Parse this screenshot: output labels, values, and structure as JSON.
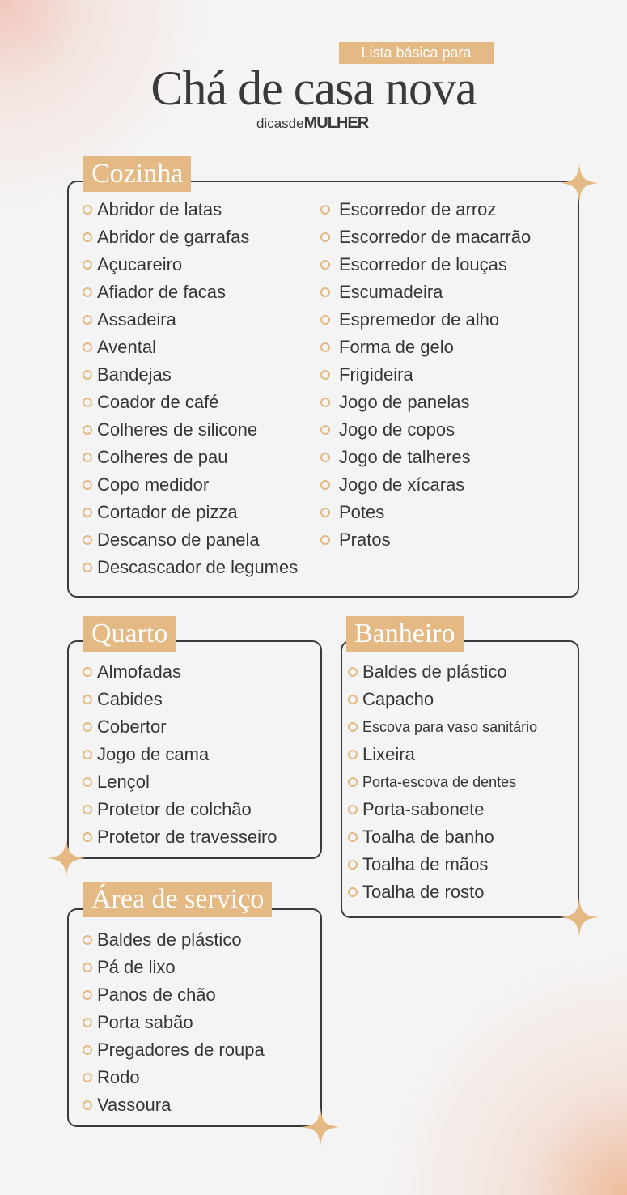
{
  "header": {
    "tag": "Lista básica para",
    "title": "Chá de casa nova",
    "logo_light": "dicasde",
    "logo_bold": "MULHER"
  },
  "colors": {
    "accent": "#e4b984",
    "text": "#363636",
    "background": "#f4f4f4"
  },
  "sections": {
    "cozinha": {
      "title": "Cozinha",
      "col1": [
        "Abridor de latas",
        "Abridor de garrafas",
        "Açucareiro",
        "Afiador de facas",
        "Assadeira",
        "Avental",
        "Bandejas",
        "Coador de café",
        "Colheres de silicone",
        "Colheres de pau",
        "Copo medidor",
        "Cortador de pizza",
        "Descanso de panela",
        "Descascador de legumes"
      ],
      "col2": [
        "Escorredor de arroz",
        "Escorredor de macarrão",
        "Escorredor de louças",
        "Escumadeira",
        "Espremedor de alho",
        "Forma de gelo",
        "Frigideira",
        "Jogo de panelas",
        "Jogo de copos",
        "Jogo de talheres",
        "Jogo de xícaras",
        "Potes",
        "Pratos"
      ]
    },
    "quarto": {
      "title": "Quarto",
      "items": [
        "Almofadas",
        "Cabides",
        "Cobertor",
        "Jogo de cama",
        "Lençol",
        "Protetor de colchão",
        "Protetor de travesseiro"
      ]
    },
    "banheiro": {
      "title": "Banheiro",
      "items": [
        "Baldes de plástico",
        "Capacho",
        "Escova para vaso sanitário",
        "Lixeira",
        "Porta-escova de dentes",
        "Porta-sabonete",
        "Toalha de banho",
        "Toalha de mãos",
        "Toalha de rosto"
      ]
    },
    "servico": {
      "title": "Área de serviço",
      "items": [
        "Baldes de plástico",
        "Pá de lixo",
        "Panos de chão",
        "Porta sabão",
        "Pregadores de roupa",
        "Rodo",
        "Vassoura"
      ]
    }
  },
  "icons": {
    "bullet": "circle-outline-icon",
    "decoration": "four-point-star-icon"
  }
}
